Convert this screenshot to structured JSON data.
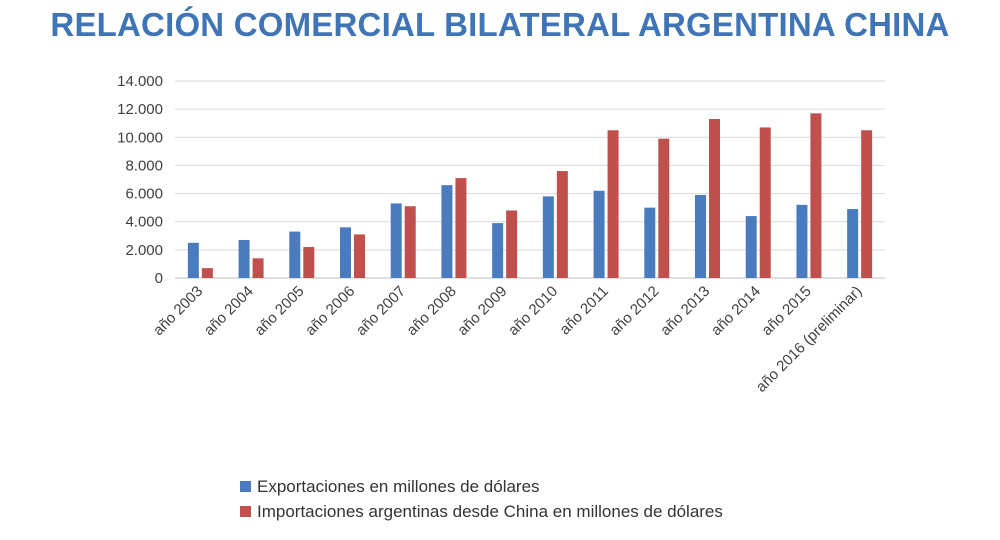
{
  "colors": {
    "title": "#3f74b6",
    "exports": "#4a7bbf",
    "imports": "#c0504d",
    "grid": "#d9d9d9",
    "axis_text": "#404040"
  },
  "chart_data": {
    "type": "bar",
    "title": "RELACIÓN COMERCIAL BILATERAL ARGENTINA CHINA",
    "xlabel": "",
    "ylabel": "",
    "ylim": [
      0,
      14000
    ],
    "yticks": [
      "0",
      "2.000",
      "4.000",
      "6.000",
      "8.000",
      "10.000",
      "12.000",
      "14.000"
    ],
    "grid": true,
    "legend_position": "bottom",
    "categories": [
      "año 2003",
      "año 2004",
      "año 2005",
      "año 2006",
      "año 2007",
      "año 2008",
      "año 2009",
      "año 2010",
      "año 2011",
      "año 2012",
      "año 2013",
      "año 2014",
      "año 2015",
      "año 2016 (preliminar)"
    ],
    "series": [
      {
        "name": "Exportaciones en millones de dólares",
        "color": "#4a7bbf",
        "values": [
          2500,
          2700,
          3300,
          3600,
          5300,
          6600,
          3900,
          5800,
          6200,
          5000,
          5900,
          4400,
          5200,
          4900
        ]
      },
      {
        "name": "Importaciones argentinas desde China en millones de dólares",
        "color": "#c0504d",
        "values": [
          700,
          1400,
          2200,
          3100,
          5100,
          7100,
          4800,
          7600,
          10500,
          9900,
          11300,
          10700,
          11700,
          10500
        ]
      }
    ]
  }
}
